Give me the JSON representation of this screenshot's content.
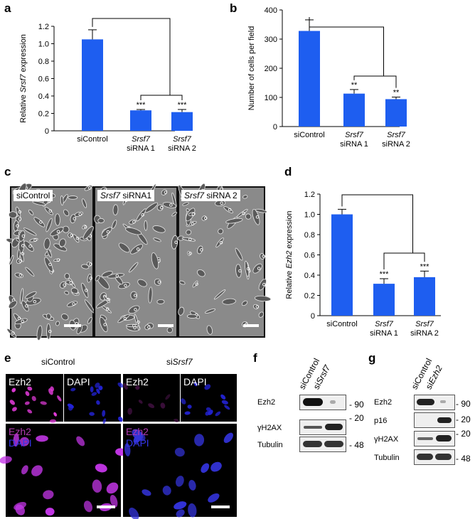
{
  "panels": {
    "a": "a",
    "b": "b",
    "c": "c",
    "d": "d",
    "e": "e",
    "f": "f",
    "g": "g"
  },
  "chart_data": [
    {
      "type": "bar",
      "panel": "a",
      "categories": [
        "siControl",
        "Srsf7 siRNA 1",
        "Srsf7 siRNA 2"
      ],
      "category_lines": [
        [
          "siControl"
        ],
        [
          "Srsf7",
          "siRNA 1"
        ],
        [
          "Srsf7",
          "siRNA 2"
        ]
      ],
      "values": [
        1.05,
        0.235,
        0.215
      ],
      "errors": [
        0.11,
        0.01,
        0.03
      ],
      "significance": [
        "",
        "***",
        "***"
      ],
      "ylabel_pre": "Relative ",
      "ylabel_italic": "Srsf7",
      "ylabel_post": " expression",
      "ylim": [
        0,
        1.2
      ],
      "yticks": [
        "0",
        "0.2",
        "0.4",
        "0.6",
        "0.8",
        "1.0",
        "1.2"
      ],
      "ytick_values": [
        0,
        0.2,
        0.4,
        0.6,
        0.8,
        1.0,
        1.2
      ]
    },
    {
      "type": "bar",
      "panel": "b",
      "categories": [
        "siControl",
        "Srsf7 siRNA 1",
        "Srsf7 siRNA 2"
      ],
      "category_lines": [
        [
          "siControl"
        ],
        [
          "Srsf7",
          "siRNA 1"
        ],
        [
          "Srsf7",
          "siRNA 2"
        ]
      ],
      "values": [
        328,
        113,
        94
      ],
      "errors": [
        38,
        14,
        7
      ],
      "significance": [
        "",
        "**",
        "**"
      ],
      "ylabel_pre": "Number of cells per field",
      "ylabel_italic": "",
      "ylabel_post": "",
      "ylim": [
        0,
        400
      ],
      "yticks": [
        "0",
        "100",
        "200",
        "300",
        "400"
      ],
      "ytick_values": [
        0,
        100,
        200,
        300,
        400
      ]
    },
    {
      "type": "bar",
      "panel": "d",
      "categories": [
        "siControl",
        "Srsf7 siRNA 1",
        "Srsf7 siRNA 2"
      ],
      "category_lines": [
        [
          "siControl"
        ],
        [
          "Srsf7",
          "siRNA 1"
        ],
        [
          "Srsf7",
          "siRNA 2"
        ]
      ],
      "values": [
        1.0,
        0.315,
        0.38
      ],
      "errors": [
        0.05,
        0.05,
        0.06
      ],
      "significance": [
        "",
        "***",
        "***"
      ],
      "ylabel_pre": "Relative ",
      "ylabel_italic": "Ezh2",
      "ylabel_post": " expression",
      "ylim": [
        0,
        1.2
      ],
      "yticks": [
        "0",
        "0.2",
        "0.4",
        "0.6",
        "0.8",
        "1.0",
        "1.2"
      ],
      "ytick_values": [
        0,
        0.2,
        0.4,
        0.6,
        0.8,
        1.0,
        1.2
      ]
    }
  ],
  "micrographs": [
    {
      "label_pre": "siControl",
      "label_italic": "",
      "label_post": ""
    },
    {
      "label_pre": "",
      "label_italic": "Srsf7",
      "label_post": " siRNA1"
    },
    {
      "label_pre": "",
      "label_italic": "Srsf7",
      "label_post": " siRNA 2"
    }
  ],
  "fluorescence": {
    "group_left": "siControl",
    "group_right_pre": "si",
    "group_right_italic": "Srsf7",
    "ezh2": "Ezh2",
    "dapi": "DAPI"
  },
  "western_f": {
    "col1_pre": "siControl",
    "col2_pre": "si",
    "col2_italic": "Srsf7",
    "rows": [
      {
        "label": "Ezh2",
        "mw": "90"
      },
      {
        "label": "γH2AX",
        "mw": "20"
      },
      {
        "label": "Tubulin",
        "mw": "48"
      }
    ]
  },
  "western_g": {
    "col1_pre": "siControl",
    "col2_pre": "si",
    "col2_italic": "Ezh2",
    "rows": [
      {
        "label": "Ezh2",
        "mw": "90"
      },
      {
        "label": "p16",
        "mw": "20"
      },
      {
        "label": "γH2AX",
        "mw": "20"
      },
      {
        "label": "Tubulin",
        "mw": "48"
      }
    ]
  },
  "colors": {
    "bar": "#1e5ef0",
    "magenta": "#e03ad8",
    "blue": "#2323d8",
    "micro_bg": "#8d8d8d"
  }
}
